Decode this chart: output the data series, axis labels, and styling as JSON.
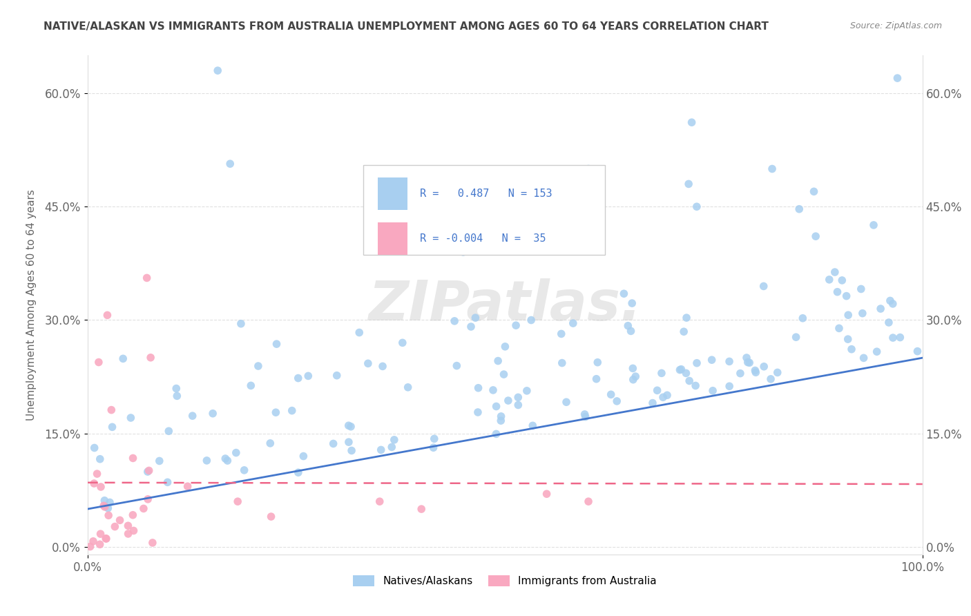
{
  "title": "NATIVE/ALASKAN VS IMMIGRANTS FROM AUSTRALIA UNEMPLOYMENT AMONG AGES 60 TO 64 YEARS CORRELATION CHART",
  "source": "Source: ZipAtlas.com",
  "ylabel": "Unemployment Among Ages 60 to 64 years",
  "xlim": [
    0.0,
    1.0
  ],
  "ylim": [
    -0.01,
    0.65
  ],
  "ytick_labels": [
    "0.0%",
    "15.0%",
    "30.0%",
    "45.0%",
    "60.0%"
  ],
  "ytick_vals": [
    0.0,
    0.15,
    0.3,
    0.45,
    0.6
  ],
  "xtick_labels": [
    "0.0%",
    "100.0%"
  ],
  "xtick_vals": [
    0.0,
    1.0
  ],
  "blue_color": "#A8CFF0",
  "pink_color": "#F9A8C0",
  "blue_line_color": "#4477CC",
  "pink_line_color": "#EE6688",
  "grid_color": "#DDDDDD",
  "background_color": "#FFFFFF",
  "title_color": "#444444",
  "source_color": "#888888"
}
